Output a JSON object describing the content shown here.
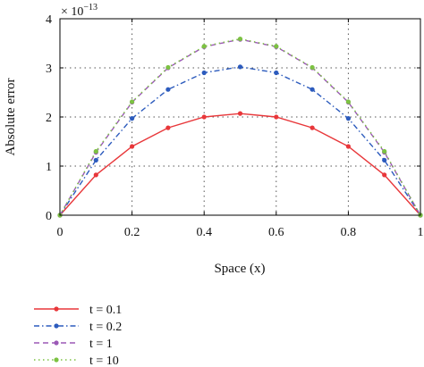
{
  "chart_data": {
    "type": "line",
    "xlabel": "Space (x)",
    "ylabel": "Absolute error",
    "y_multiplier_label": "× 10",
    "y_multiplier_exponent": "−13",
    "xlim": [
      0,
      1
    ],
    "ylim": [
      0,
      4
    ],
    "x_ticks": [
      0,
      0.2,
      0.4,
      0.6,
      0.8,
      1
    ],
    "x_tick_labels": [
      "0",
      "0.2",
      "0.4",
      "0.6",
      "0.8",
      "1"
    ],
    "y_ticks": [
      0,
      1,
      2,
      3,
      4
    ],
    "y_tick_labels": [
      "0",
      "1",
      "2",
      "3",
      "4"
    ],
    "grid": true,
    "legend_position": "bottom-left, below the plot",
    "x": [
      0,
      0.1,
      0.2,
      0.3,
      0.4,
      0.5,
      0.6,
      0.7,
      0.8,
      0.9,
      1
    ],
    "series": [
      {
        "name": "t = 0.1",
        "color": "#e8373a",
        "line_style": "solid",
        "values": [
          0,
          0.82,
          1.4,
          1.78,
          2.0,
          2.07,
          2.0,
          1.78,
          1.4,
          0.82,
          0
        ]
      },
      {
        "name": "t = 0.2",
        "color": "#2c5bbd",
        "line_style": "dash-dot",
        "values": [
          0,
          1.12,
          1.97,
          2.56,
          2.9,
          3.02,
          2.9,
          2.56,
          1.97,
          1.12,
          0
        ]
      },
      {
        "name": "t = 1",
        "color": "#9b59b6",
        "line_style": "dashed",
        "values": [
          0,
          1.28,
          2.3,
          3.0,
          3.43,
          3.58,
          3.43,
          3.0,
          2.3,
          1.28,
          0
        ]
      },
      {
        "name": "t = 10",
        "color": "#7cc242",
        "line_style": "dotted",
        "values": [
          0,
          1.3,
          2.31,
          3.01,
          3.44,
          3.59,
          3.44,
          3.01,
          2.31,
          1.3,
          0
        ]
      }
    ]
  }
}
